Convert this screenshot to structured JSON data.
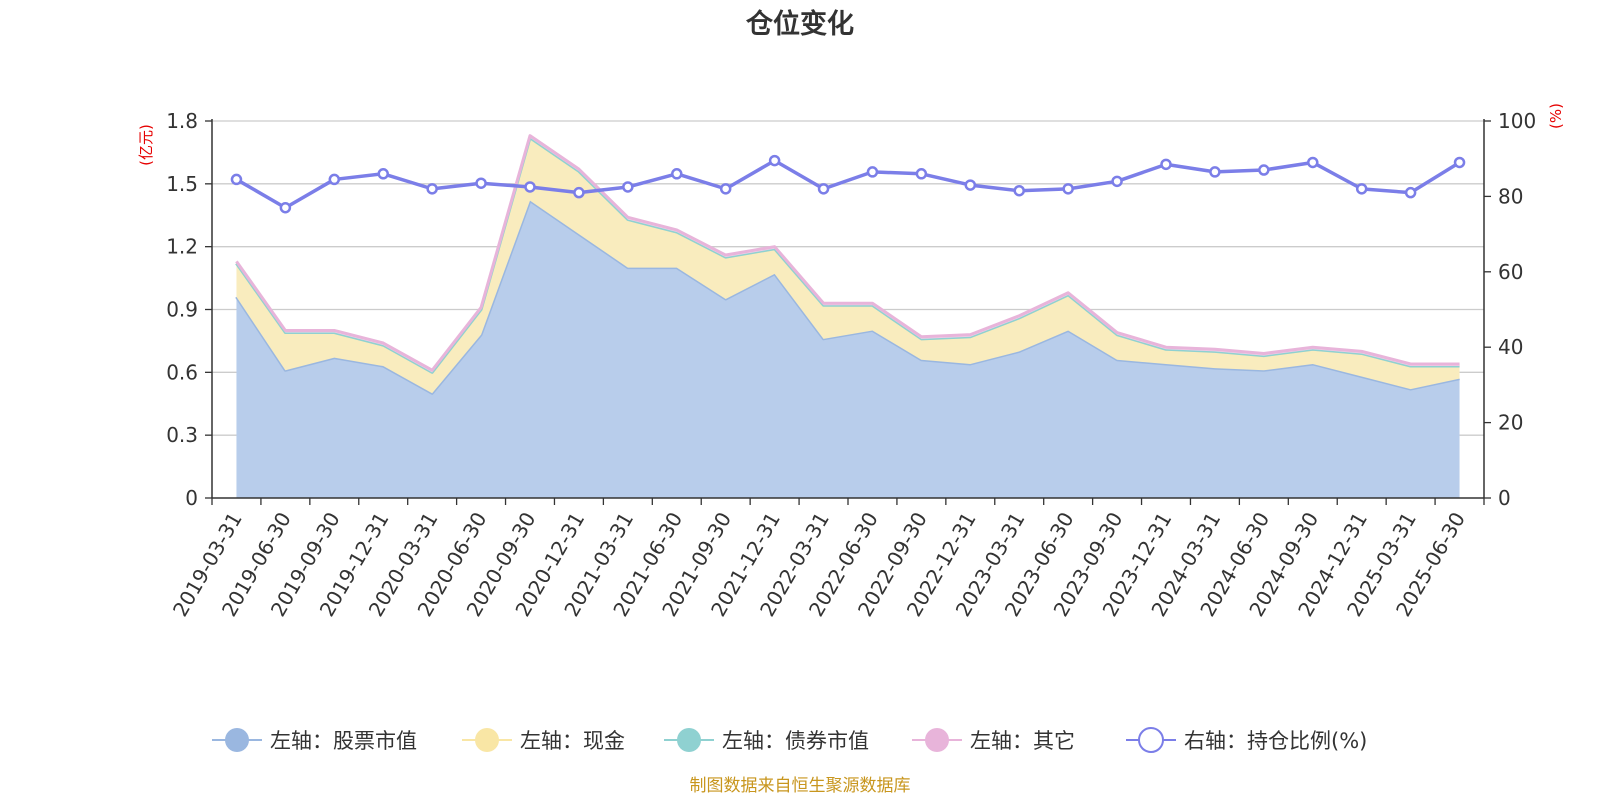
{
  "chart_data": {
    "type": "area",
    "title": "仓位变化",
    "source_note": "制图数据来自恒生聚源数据库",
    "categories": [
      "2019-03-31",
      "2019-06-30",
      "2019-09-30",
      "2019-12-31",
      "2020-03-31",
      "2020-06-30",
      "2020-09-30",
      "2020-12-31",
      "2021-03-31",
      "2021-06-30",
      "2021-09-30",
      "2021-12-31",
      "2022-03-31",
      "2022-06-30",
      "2022-09-30",
      "2022-12-31",
      "2023-03-31",
      "2023-06-30",
      "2023-09-30",
      "2023-12-31",
      "2024-03-31",
      "2024-06-30",
      "2024-09-30",
      "2024-12-31",
      "2025-03-31",
      "2025-06-30"
    ],
    "left_axis": {
      "unit": "(亿元)",
      "min": 0,
      "max": 1.8,
      "ticks": [
        "0",
        "0.3",
        "0.6",
        "0.9",
        "1.2",
        "1.5",
        "1.8"
      ]
    },
    "right_axis": {
      "unit": "(%)",
      "min": 0,
      "max": 100,
      "ticks": [
        "0",
        "20",
        "40",
        "60",
        "80",
        "100"
      ]
    },
    "grid": true,
    "legend_position": "bottom",
    "stack": [
      "股票市值",
      "现金",
      "债券市值",
      "其它"
    ],
    "series": [
      {
        "name": "左轴：股票市值",
        "key": "股票市值",
        "axis": "left",
        "color": "#9ab7e0",
        "fill": "#b8cdeb",
        "values": [
          0.96,
          0.61,
          0.67,
          0.63,
          0.5,
          0.78,
          1.42,
          1.26,
          1.1,
          1.1,
          0.95,
          1.07,
          0.76,
          0.8,
          0.66,
          0.64,
          0.7,
          0.8,
          0.66,
          0.64,
          0.62,
          0.61,
          0.64,
          0.58,
          0.52,
          0.57
        ]
      },
      {
        "name": "左轴：现金",
        "key": "现金",
        "axis": "left",
        "color": "#f9e6a5",
        "fill": "#f9ecbe",
        "values": [
          0.16,
          0.18,
          0.12,
          0.1,
          0.1,
          0.12,
          0.3,
          0.3,
          0.23,
          0.17,
          0.2,
          0.12,
          0.16,
          0.12,
          0.1,
          0.13,
          0.16,
          0.17,
          0.12,
          0.07,
          0.08,
          0.07,
          0.07,
          0.11,
          0.11,
          0.06
        ]
      },
      {
        "name": "左轴：债券市值",
        "key": "债券市值",
        "axis": "left",
        "color": "#8fd1d1",
        "fill": "#b7e3e3",
        "values": [
          0,
          0,
          0,
          0,
          0,
          0,
          0,
          0,
          0,
          0,
          0,
          0,
          0,
          0,
          0,
          0,
          0,
          0,
          0,
          0,
          0,
          0,
          0,
          0,
          0,
          0
        ]
      },
      {
        "name": "左轴：其它",
        "key": "其它",
        "axis": "left",
        "color": "#e8b4da",
        "fill": "#f2d2ea",
        "values": [
          0.01,
          0.01,
          0.01,
          0.01,
          0.01,
          0.01,
          0.01,
          0.01,
          0.01,
          0.01,
          0.01,
          0.01,
          0.01,
          0.01,
          0.01,
          0.01,
          0.01,
          0.01,
          0.01,
          0.01,
          0.01,
          0.01,
          0.01,
          0.01,
          0.01,
          0.01
        ]
      },
      {
        "name": "右轴：持仓比例(%)",
        "key": "持仓比例",
        "axis": "right",
        "color": "#7b7ee8",
        "type": "line",
        "values": [
          84.5,
          77.0,
          84.5,
          86.0,
          82.0,
          83.5,
          82.5,
          81.0,
          82.5,
          86.0,
          82.0,
          89.5,
          82.0,
          86.5,
          86.0,
          83.0,
          81.5,
          82.0,
          84.0,
          88.5,
          86.5,
          87.0,
          89.0,
          82.0,
          81.0,
          89.0
        ]
      }
    ]
  }
}
